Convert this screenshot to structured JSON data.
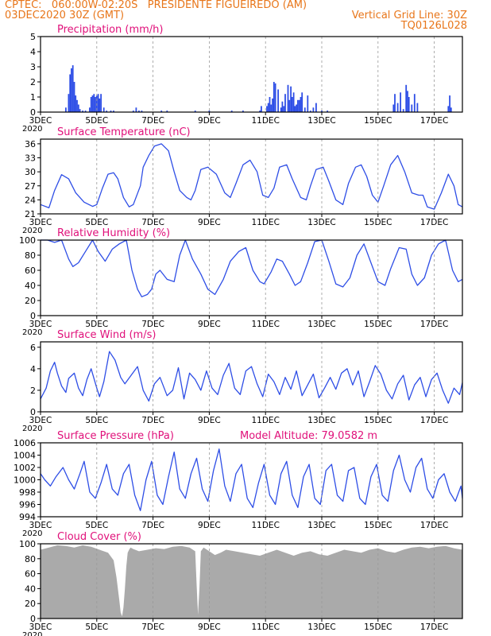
{
  "header": {
    "line1_left": "CPTEC:   060:00W-02:20S   PRESIDENTE FIGUEIREDO (AM)",
    "line2_left": "03DEC2020 30Z (GMT)",
    "line2_right": "Vertical Grid Line: 30Z",
    "line3_right": "TQ0126L028"
  },
  "x_axis": {
    "tick_labels": [
      "3DEC",
      "5DEC",
      "7DEC",
      "9DEC",
      "11DEC",
      "13DEC",
      "15DEC",
      "17DEC"
    ],
    "tick_days": [
      0,
      2,
      4,
      6,
      8,
      10,
      12,
      14
    ],
    "clipped_label": "2020",
    "days_span": 15
  },
  "colors": {
    "line": "#2e4ee6",
    "bar": "#2e4ee6",
    "title": "#e0107a",
    "cloud": "#aaaaaa",
    "header": "#e8761a",
    "grid": "#999999"
  },
  "panels": [
    {
      "id": "precip",
      "title": "Precipitation  (mm/h)",
      "type": "bar",
      "ylim": [
        0,
        5
      ],
      "yticks": [
        0,
        1,
        2,
        3,
        4,
        5
      ]
    },
    {
      "id": "temp",
      "title": "Surface Temperature (nC)",
      "type": "line",
      "ylim": [
        21,
        37
      ],
      "yticks": [
        21,
        24,
        27,
        30,
        33,
        36
      ]
    },
    {
      "id": "rh",
      "title": "Relative Humidity (%)",
      "type": "line",
      "ylim": [
        0,
        100
      ],
      "yticks": [
        0,
        20,
        40,
        60,
        80,
        100
      ]
    },
    {
      "id": "wind",
      "title": "Surface Wind (m/s)",
      "type": "line",
      "ylim": [
        0,
        6.5
      ],
      "yticks": [
        0,
        2,
        4,
        6
      ]
    },
    {
      "id": "pressure",
      "title": "Surface Pressure (hPa)",
      "extra": "Model Altitude: 79.0582 m",
      "type": "line",
      "ylim": [
        994,
        1006
      ],
      "yticks": [
        994,
        996,
        998,
        1000,
        1002,
        1004,
        1006
      ]
    },
    {
      "id": "cloud",
      "title": "Cloud Cover (%)",
      "type": "area",
      "ylim": [
        0,
        100
      ],
      "yticks": [
        0,
        20,
        40,
        60,
        80,
        100
      ]
    }
  ],
  "chart_data": [
    {
      "type": "bar",
      "title": "Precipitation  (mm/h)",
      "x_unit": "days since 3DEC 00Z",
      "x": [
        0.9,
        1.0,
        1.05,
        1.1,
        1.15,
        1.2,
        1.25,
        1.3,
        1.35,
        1.4,
        1.5,
        1.6,
        1.75,
        1.8,
        1.85,
        1.9,
        1.95,
        2.0,
        2.05,
        2.1,
        2.15,
        2.25,
        2.35,
        2.5,
        2.6,
        3.3,
        3.4,
        3.5,
        3.6,
        4.3,
        4.5,
        5.5,
        6.0,
        6.8,
        7.2,
        7.8,
        7.85,
        8.05,
        8.1,
        8.15,
        8.2,
        8.25,
        8.3,
        8.35,
        8.45,
        8.55,
        8.6,
        8.65,
        8.7,
        8.8,
        8.85,
        8.9,
        8.95,
        9.0,
        9.05,
        9.1,
        9.15,
        9.2,
        9.25,
        9.3,
        9.4,
        9.5,
        9.6,
        9.7,
        9.8,
        10.0,
        10.2,
        12.55,
        12.6,
        12.7,
        12.8,
        12.9,
        13.0,
        13.05,
        13.1,
        13.2,
        13.3,
        13.4,
        14.5,
        14.55,
        14.6
      ],
      "values": [
        0.3,
        1.2,
        2.5,
        2.9,
        3.1,
        2.0,
        1.1,
        0.8,
        0.5,
        0.2,
        0.1,
        0.1,
        0.3,
        1.0,
        1.1,
        1.2,
        1.0,
        1.1,
        1.2,
        0.9,
        1.2,
        0.3,
        0.1,
        0.1,
        0.1,
        0.1,
        0.3,
        0.1,
        0.1,
        0.1,
        0.1,
        0.1,
        0.1,
        0.1,
        0.1,
        0.1,
        0.4,
        0.4,
        0.6,
        1.0,
        0.5,
        0.9,
        2.0,
        1.9,
        1.5,
        0.3,
        0.7,
        0.4,
        1.2,
        1.8,
        0.8,
        1.7,
        1.0,
        1.3,
        0.4,
        0.5,
        0.8,
        0.8,
        1.0,
        1.3,
        0.3,
        1.1,
        0.1,
        0.3,
        0.6,
        0.1,
        0.1,
        0.5,
        1.2,
        0.6,
        1.3,
        0.2,
        1.8,
        1.4,
        1.0,
        0.5,
        1.2,
        0.6,
        0.4,
        1.1,
        0.3
      ],
      "ylim": [
        0,
        5
      ]
    },
    {
      "type": "line",
      "title": "Surface Temperature (nC)",
      "x_unit": "days since 3DEC 00Z",
      "x": [
        0,
        0.3,
        0.5,
        0.75,
        1.0,
        1.25,
        1.55,
        1.85,
        2.0,
        2.2,
        2.4,
        2.6,
        2.75,
        2.95,
        3.15,
        3.3,
        3.55,
        3.65,
        3.85,
        4.05,
        4.3,
        4.55,
        4.75,
        4.95,
        5.2,
        5.35,
        5.5,
        5.7,
        5.95,
        6.25,
        6.55,
        6.75,
        6.95,
        7.2,
        7.45,
        7.7,
        7.9,
        8.1,
        8.3,
        8.5,
        8.75,
        8.95,
        9.25,
        9.45,
        9.6,
        9.8,
        10.05,
        10.25,
        10.5,
        10.75,
        10.95,
        11.2,
        11.4,
        11.6,
        11.8,
        12.0,
        12.2,
        12.45,
        12.7,
        12.95,
        13.2,
        13.45,
        13.6,
        13.75,
        14.0,
        14.25,
        14.5,
        14.7,
        14.85,
        15.0
      ],
      "values": [
        23.0,
        22.3,
        26.0,
        29.4,
        28.5,
        25.5,
        23.5,
        22.6,
        23.0,
        26.5,
        29.5,
        29.8,
        28.5,
        24.5,
        22.5,
        23.0,
        27.0,
        31.0,
        33.5,
        35.5,
        36.0,
        34.5,
        30.0,
        26.0,
        24.5,
        24.0,
        26.0,
        30.5,
        31.0,
        29.5,
        25.5,
        24.5,
        27.5,
        31.5,
        32.5,
        30.0,
        25.0,
        24.5,
        26.5,
        31.0,
        31.5,
        28.5,
        24.5,
        24.0,
        27.0,
        30.5,
        31.0,
        28.0,
        24.0,
        23.0,
        27.5,
        31.0,
        31.5,
        29.0,
        25.0,
        23.5,
        27.0,
        31.5,
        33.5,
        30.0,
        25.5,
        25.0,
        25.0,
        22.5,
        22.0,
        25.5,
        29.5,
        27.0,
        23.0,
        22.5
      ],
      "ylim": [
        21,
        37
      ]
    },
    {
      "type": "line",
      "title": "Relative Humidity (%)",
      "x_unit": "days since 3DEC 00Z",
      "x": [
        0,
        0.25,
        0.5,
        0.75,
        1.0,
        1.15,
        1.35,
        1.6,
        1.85,
        2.05,
        2.3,
        2.55,
        2.8,
        3.05,
        3.25,
        3.45,
        3.6,
        3.8,
        3.95,
        4.1,
        4.25,
        4.5,
        4.75,
        4.95,
        5.15,
        5.4,
        5.7,
        5.95,
        6.2,
        6.5,
        6.75,
        7.05,
        7.3,
        7.55,
        7.8,
        7.95,
        8.2,
        8.4,
        8.6,
        8.85,
        9.05,
        9.25,
        9.5,
        9.75,
        10.0,
        10.25,
        10.5,
        10.75,
        11.0,
        11.25,
        11.5,
        11.75,
        12.0,
        12.25,
        12.45,
        12.75,
        13.0,
        13.2,
        13.4,
        13.65,
        13.9,
        14.15,
        14.4,
        14.65,
        14.85,
        15.0
      ],
      "values": [
        100,
        100,
        97,
        100,
        75,
        65,
        70,
        85,
        100,
        85,
        72,
        88,
        95,
        100,
        60,
        35,
        25,
        28,
        35,
        55,
        60,
        48,
        45,
        80,
        100,
        75,
        55,
        35,
        28,
        48,
        72,
        85,
        90,
        60,
        45,
        42,
        58,
        75,
        72,
        55,
        40,
        45,
        70,
        98,
        100,
        72,
        42,
        38,
        50,
        80,
        95,
        70,
        45,
        40,
        62,
        90,
        88,
        55,
        40,
        50,
        80,
        95,
        100,
        60,
        45,
        48
      ],
      "ylim": [
        0,
        100
      ]
    },
    {
      "type": "line",
      "title": "Surface Wind (m/s)",
      "x_unit": "days since 3DEC 00Z",
      "x": [
        0,
        0.2,
        0.35,
        0.5,
        0.6,
        0.75,
        0.9,
        1.0,
        1.2,
        1.35,
        1.5,
        1.65,
        1.8,
        2.0,
        2.1,
        2.25,
        2.45,
        2.65,
        2.85,
        3.0,
        3.25,
        3.45,
        3.65,
        3.85,
        4.05,
        4.25,
        4.5,
        4.7,
        4.9,
        5.1,
        5.3,
        5.5,
        5.7,
        5.9,
        6.1,
        6.3,
        6.5,
        6.7,
        6.9,
        7.1,
        7.3,
        7.5,
        7.7,
        7.9,
        8.1,
        8.3,
        8.5,
        8.7,
        8.9,
        9.1,
        9.3,
        9.5,
        9.7,
        9.9,
        10.1,
        10.3,
        10.5,
        10.7,
        10.9,
        11.1,
        11.3,
        11.5,
        11.7,
        11.9,
        12.1,
        12.3,
        12.5,
        12.7,
        12.9,
        13.1,
        13.3,
        13.5,
        13.7,
        13.9,
        14.1,
        14.3,
        14.5,
        14.7,
        14.9,
        15.0
      ],
      "values": [
        1.2,
        2.2,
        3.8,
        4.6,
        3.6,
        2.4,
        1.8,
        3.1,
        3.6,
        2.2,
        1.5,
        3.0,
        4.0,
        2.2,
        1.4,
        2.8,
        5.6,
        4.8,
        3.2,
        2.6,
        3.5,
        4.2,
        2.0,
        1.0,
        2.6,
        3.2,
        1.5,
        2.0,
        4.1,
        1.2,
        3.6,
        3.0,
        2.0,
        3.8,
        2.2,
        1.6,
        3.4,
        4.5,
        2.2,
        1.6,
        3.8,
        4.2,
        2.6,
        1.4,
        3.5,
        2.8,
        1.6,
        3.2,
        2.1,
        3.8,
        1.5,
        2.5,
        3.5,
        1.3,
        2.2,
        3.2,
        2.1,
        3.6,
        4.0,
        2.5,
        3.8,
        1.4,
        2.8,
        4.3,
        3.5,
        2.0,
        1.2,
        2.6,
        3.4,
        1.1,
        2.5,
        3.2,
        1.4,
        3.0,
        3.6,
        2.0,
        0.8,
        2.2,
        1.6,
        2.7
      ],
      "ylim": [
        0,
        6.5
      ]
    },
    {
      "type": "line",
      "title": "Surface Pressure (hPa)",
      "x_unit": "days since 3DEC 00Z",
      "x": [
        0,
        0.15,
        0.35,
        0.55,
        0.8,
        1.0,
        1.2,
        1.4,
        1.55,
        1.75,
        1.95,
        2.15,
        2.35,
        2.55,
        2.75,
        2.95,
        3.15,
        3.35,
        3.55,
        3.75,
        3.95,
        4.15,
        4.35,
        4.55,
        4.75,
        4.95,
        5.15,
        5.35,
        5.55,
        5.75,
        5.95,
        6.15,
        6.35,
        6.55,
        6.75,
        6.95,
        7.15,
        7.35,
        7.55,
        7.75,
        7.95,
        8.15,
        8.35,
        8.55,
        8.75,
        8.95,
        9.15,
        9.35,
        9.55,
        9.75,
        9.95,
        10.15,
        10.35,
        10.55,
        10.75,
        10.95,
        11.15,
        11.35,
        11.55,
        11.75,
        11.95,
        12.15,
        12.35,
        12.55,
        12.75,
        12.95,
        13.15,
        13.35,
        13.55,
        13.75,
        13.95,
        14.15,
        14.35,
        14.55,
        14.75,
        14.95,
        15.0
      ],
      "values": [
        1001.0,
        1000.0,
        999.0,
        1000.5,
        1002.0,
        1000.0,
        998.5,
        1001.0,
        1003.0,
        998.0,
        997.0,
        999.5,
        1002.5,
        998.5,
        997.5,
        1001.0,
        1002.5,
        997.5,
        995.0,
        1000.0,
        1003.0,
        997.5,
        996.0,
        1000.5,
        1004.5,
        998.5,
        997.0,
        1001.0,
        1003.5,
        998.5,
        996.5,
        1001.5,
        1005.0,
        999.0,
        996.5,
        1001.0,
        1002.5,
        997.0,
        995.5,
        999.5,
        1002.5,
        997.5,
        996.0,
        1001.0,
        1003.0,
        997.5,
        995.5,
        1000.5,
        1002.5,
        997.0,
        996.0,
        1001.5,
        1002.5,
        997.5,
        996.5,
        1001.5,
        1002.0,
        997.0,
        996.0,
        1000.5,
        1002.5,
        997.5,
        996.5,
        1001.5,
        1004.0,
        1000.0,
        998.0,
        1002.0,
        1003.5,
        998.5,
        997.0,
        1000.0,
        1001.0,
        998.0,
        996.5,
        999.0,
        997.0
      ],
      "ylim": [
        994,
        1006
      ]
    },
    {
      "type": "area",
      "title": "Cloud Cover (%)",
      "x_unit": "days since 3DEC 00Z",
      "x": [
        0,
        0.3,
        0.6,
        0.9,
        1.2,
        1.5,
        1.8,
        2.1,
        2.4,
        2.6,
        2.7,
        2.8,
        2.85,
        2.9,
        2.95,
        3.0,
        3.05,
        3.1,
        3.15,
        3.2,
        3.3,
        3.5,
        3.8,
        4.1,
        4.4,
        4.7,
        5.0,
        5.3,
        5.5,
        5.55,
        5.6,
        5.65,
        5.7,
        5.8,
        6.0,
        6.2,
        6.4,
        6.6,
        6.9,
        7.2,
        7.5,
        7.8,
        8.1,
        8.4,
        8.7,
        9.0,
        9.3,
        9.6,
        9.9,
        10.2,
        10.5,
        10.8,
        11.1,
        11.4,
        11.7,
        12.0,
        12.3,
        12.6,
        12.9,
        13.2,
        13.5,
        13.8,
        14.1,
        14.4,
        14.7,
        15.0
      ],
      "values": [
        92,
        95,
        98,
        97,
        95,
        98,
        96,
        92,
        88,
        78,
        55,
        25,
        8,
        3,
        15,
        40,
        70,
        88,
        92,
        95,
        93,
        90,
        92,
        94,
        93,
        96,
        97,
        95,
        90,
        45,
        5,
        40,
        90,
        95,
        90,
        85,
        88,
        92,
        90,
        88,
        86,
        84,
        88,
        92,
        88,
        84,
        88,
        90,
        86,
        84,
        88,
        92,
        90,
        88,
        92,
        94,
        90,
        88,
        92,
        95,
        96,
        94,
        96,
        97,
        94,
        92
      ],
      "ylim": [
        0,
        100
      ]
    }
  ]
}
